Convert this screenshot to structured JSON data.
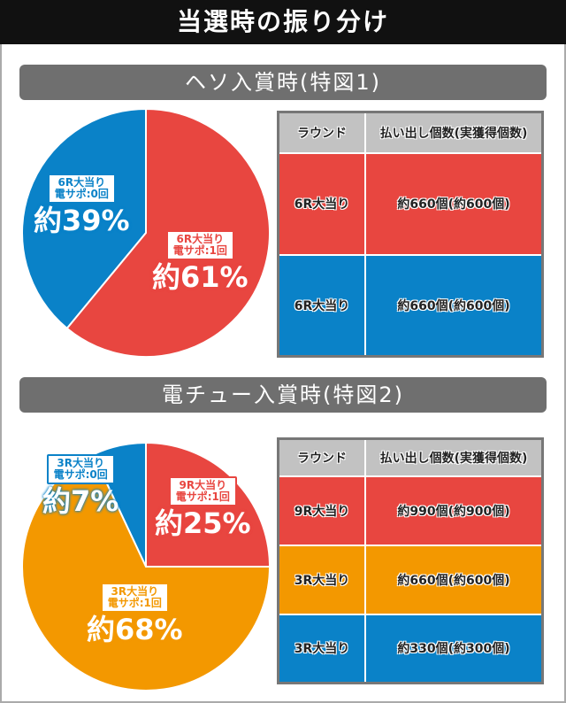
{
  "title": "当選時の振り分け",
  "sections": [
    {
      "banner": "ヘソ入賞時(特図1)",
      "table": {
        "headers": [
          "ラウンド",
          "払い出し個数(実獲得個数)"
        ],
        "rows": [
          {
            "round": "6R大当り",
            "payout": "約660個(約600個)",
            "color": "#e84640"
          },
          {
            "round": "6R大当り",
            "payout": "約660個(約600個)",
            "color": "#0a82c8"
          }
        ]
      },
      "chart_data": {
        "type": "pie",
        "slices": [
          {
            "line1": "6R大当り",
            "line2": "電サポ:0回",
            "pct_label": "約39%",
            "value": 39,
            "color": "#0a82c8"
          },
          {
            "line1": "6R大当り",
            "line2": "電サポ:1回",
            "pct_label": "約61%",
            "value": 61,
            "color": "#e84640"
          }
        ]
      }
    },
    {
      "banner": "電チュー入賞時(特図2)",
      "table": {
        "headers": [
          "ラウンド",
          "払い出し個数(実獲得個数)"
        ],
        "rows": [
          {
            "round": "9R大当り",
            "payout": "約990個(約900個)",
            "color": "#e84640"
          },
          {
            "round": "3R大当り",
            "payout": "約660個(約600個)",
            "color": "#f39800"
          },
          {
            "round": "3R大当り",
            "payout": "約330個(約300個)",
            "color": "#0a82c8"
          }
        ]
      },
      "chart_data": {
        "type": "pie",
        "slices": [
          {
            "line1": "3R大当り",
            "line2": "電サポ:0回",
            "pct_label": "約7%",
            "value": 7,
            "color": "#0a82c8"
          },
          {
            "line1": "9R大当り",
            "line2": "電サポ:1回",
            "pct_label": "約25%",
            "value": 25,
            "color": "#e84640"
          },
          {
            "line1": "3R大当り",
            "line2": "電サポ:1回",
            "pct_label": "約68%",
            "value": 68,
            "color": "#f39800"
          }
        ]
      }
    }
  ]
}
